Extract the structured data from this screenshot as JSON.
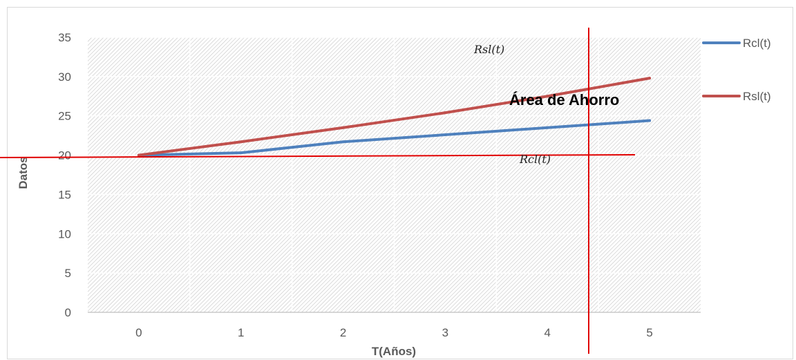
{
  "chart_data": {
    "type": "line",
    "title": "",
    "xlabel": "T(Años)",
    "ylabel": "Datos",
    "categories": [
      "0",
      "1",
      "2",
      "3",
      "4",
      "5"
    ],
    "ylim": [
      0,
      35
    ],
    "yticks": [
      0,
      5,
      10,
      15,
      20,
      25,
      30,
      35
    ],
    "grid": true,
    "legend": "right",
    "series": [
      {
        "name": "Rcl(t)",
        "color": "#4F81BD",
        "values": [
          20,
          20.3,
          21.7,
          22.6,
          23.5,
          24.4
        ]
      },
      {
        "name": "Rsl(t)",
        "color": "#C0504D",
        "values": [
          20,
          21.7,
          23.5,
          25.4,
          27.5,
          29.8
        ]
      }
    ],
    "annotations": [
      {
        "text": "Rsl(t)"
      },
      {
        "text": "Área de Ahorro"
      },
      {
        "text": "Rcl(t)"
      }
    ],
    "annotation_line_color": "#E00000"
  }
}
